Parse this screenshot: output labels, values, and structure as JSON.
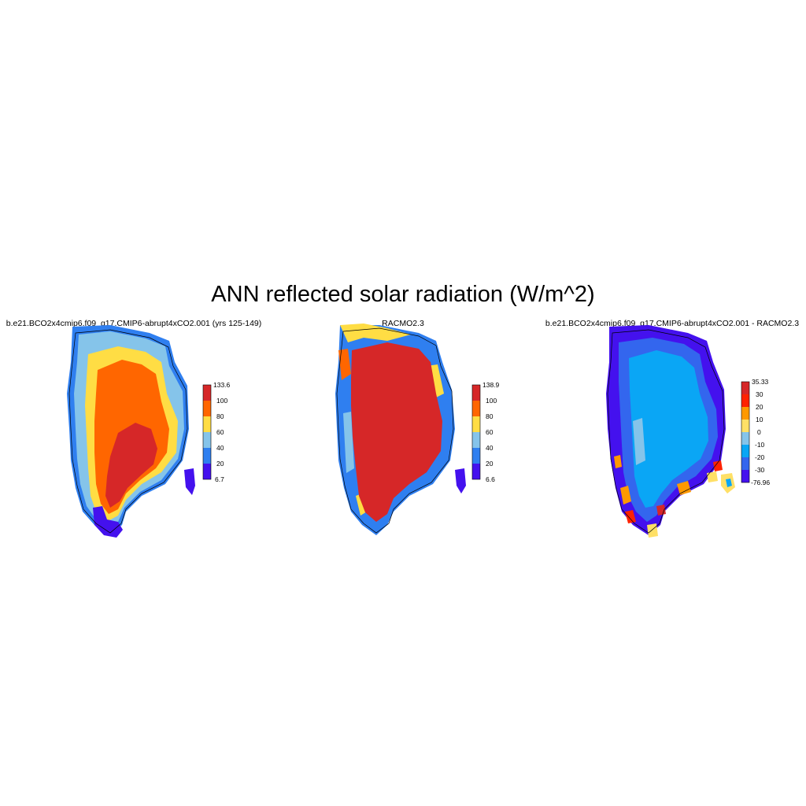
{
  "title": "ANN reflected solar radiation (W/m^2)",
  "panels": [
    {
      "title": "b.e21.BCO2x4cmip6.f09_g17.CMIP6-abrupt4xCO2.001 (yrs 125-149)",
      "colorbar": {
        "labels": [
          "133.6",
          "100",
          "80",
          "60",
          "40",
          "20",
          "6.7"
        ],
        "colors": [
          "#d62728",
          "#ff6600",
          "#ffdd44",
          "#85c4ea",
          "#2f7ff0",
          "#4411ee"
        ]
      }
    },
    {
      "title": "RACMO2.3",
      "colorbar": {
        "labels": [
          "138.9",
          "100",
          "80",
          "60",
          "40",
          "20",
          "6.6"
        ],
        "colors": [
          "#d62728",
          "#ff6600",
          "#ffdd44",
          "#85c4ea",
          "#2f7ff0",
          "#4411ee"
        ]
      }
    },
    {
      "title": "b.e21.BCO2x4cmip6.f09_g17.CMIP6-abrupt4xCO2.001 - RACMO2.3",
      "colorbar": {
        "labels": [
          "35.33",
          "30",
          "20",
          "10",
          "0",
          "-10",
          "-20",
          "-30",
          "-76.96"
        ],
        "colors": [
          "#d62728",
          "#ff2200",
          "#ff9900",
          "#ffe066",
          "#85c4ea",
          "#0aa6f5",
          "#3366ee",
          "#4411ee"
        ]
      }
    }
  ]
}
